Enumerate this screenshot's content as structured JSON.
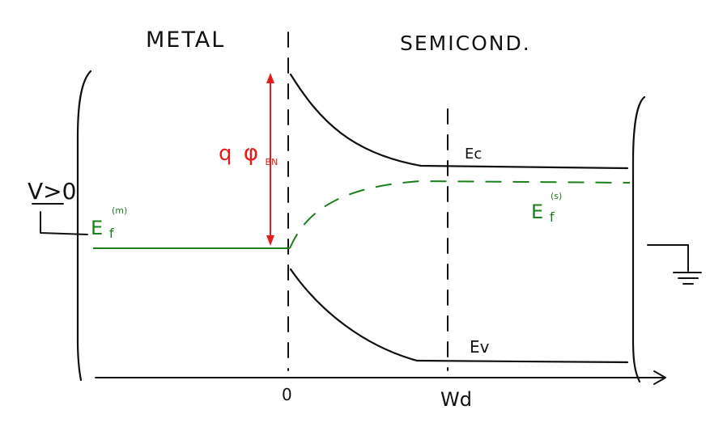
{
  "labels": {
    "metal": "METAL",
    "semiconductor": "SEMICOND.",
    "conduction_band": "Ec",
    "valence_band": "Ev",
    "barrier_prefix": "q",
    "barrier_symbol": "φ",
    "barrier_subscript": "BN",
    "bias": "V>0",
    "fermi_metal_base": "E",
    "fermi_metal_sub": "f",
    "fermi_metal_sup": "(m)",
    "fermi_semi_base": "E",
    "fermi_semi_sub": "f",
    "fermi_semi_sup": "(s)",
    "origin": "0",
    "depletion_width": "Wd"
  },
  "colors": {
    "ink": "#111111",
    "fermi": "#1b7f1b",
    "barrier": "#e51c1c"
  }
}
